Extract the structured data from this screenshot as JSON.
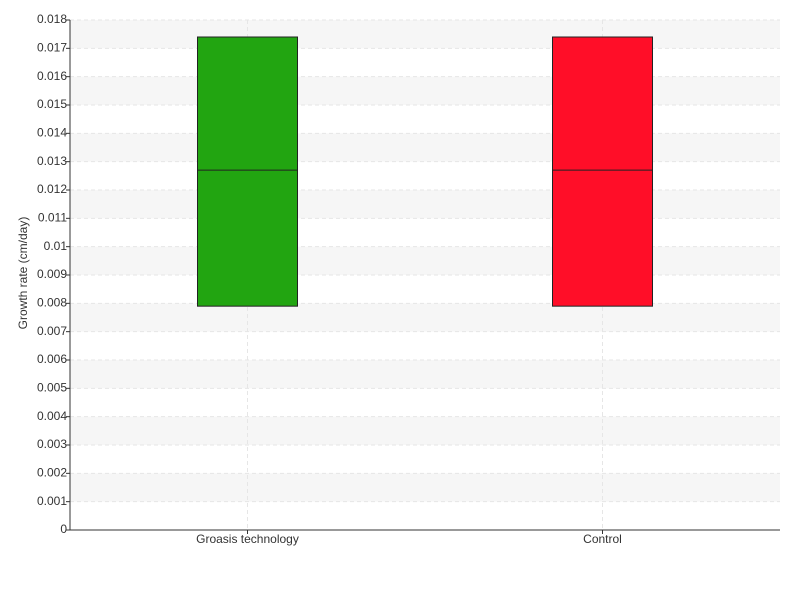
{
  "chart_data": {
    "type": "box",
    "y_label": "Growth rate (cm/day)",
    "categories": [
      "Groasis technology",
      "Control"
    ],
    "q1": [
      0.0079,
      0.0079
    ],
    "median": [
      0.0127,
      0.0127
    ],
    "q3": [
      0.0174,
      0.0174
    ],
    "colors": [
      "#22a511",
      "#ff0e28"
    ],
    "ylim": [
      0,
      0.018
    ],
    "yticks": [
      0,
      0.001,
      0.002,
      0.003,
      0.004,
      0.005,
      0.006,
      0.007,
      0.008,
      0.009,
      0.01,
      0.011,
      0.012,
      0.013,
      0.014,
      0.015,
      0.016,
      0.017,
      0.018
    ],
    "grid": true
  }
}
